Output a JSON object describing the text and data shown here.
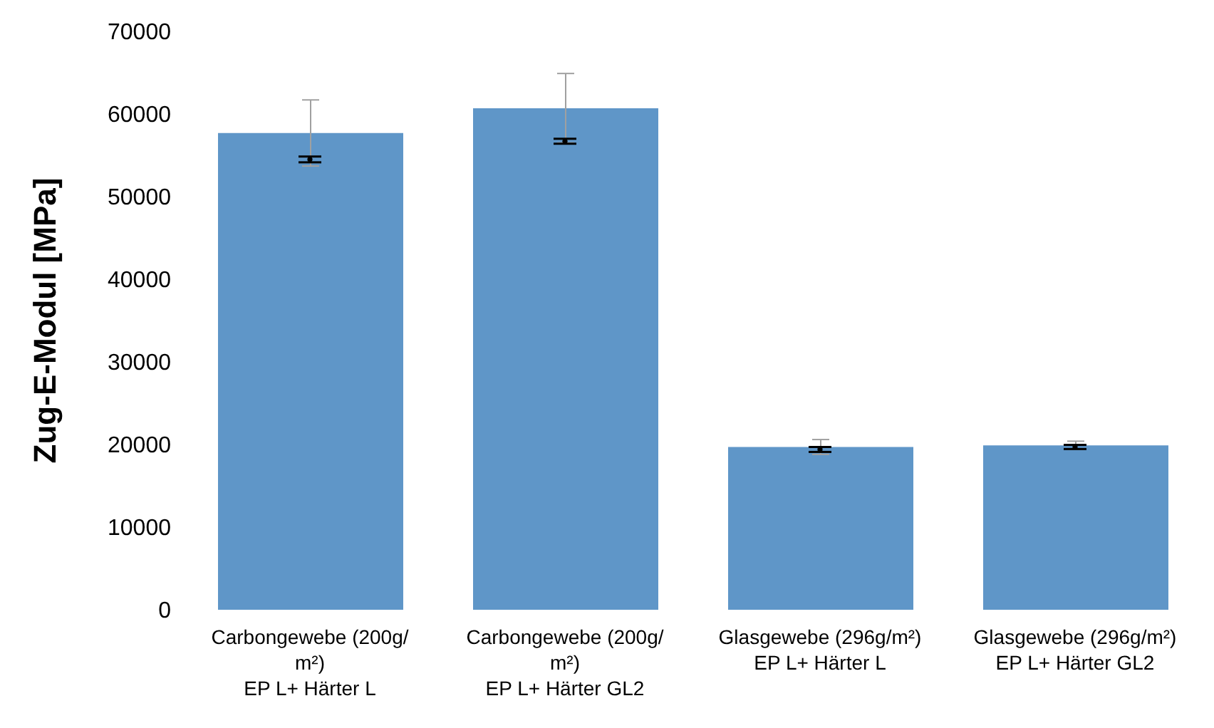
{
  "chart_data": {
    "type": "bar",
    "ylabel": "Zug-E-Modul [MPa]",
    "categories": [
      "Carbongewebe (200g/m²)\nEP L+ Härter L",
      "Carbongewebe (200g/m²)\nEP L+ Härter GL2",
      "Glasgewebe (296g/m²)\nEP L+ Härter L",
      "Glasgewebe (296g/m²)\nEP L+ Härter GL2"
    ],
    "series": [
      {
        "color": "#5f96c8",
        "values": [
          57700,
          60700,
          19700,
          19900
        ],
        "errors": [
          4000,
          4200,
          900,
          500
        ]
      },
      {
        "type": "scatter",
        "color": "#000000",
        "marker": "circle",
        "values": [
          54500,
          56700,
          19400,
          19700
        ],
        "errors": [
          350,
          300,
          300,
          250
        ]
      }
    ],
    "ylim": [
      0,
      70000
    ],
    "yticks": [
      0,
      10000,
      20000,
      30000,
      40000,
      50000,
      60000,
      70000
    ],
    "grid": false,
    "legend": false
  }
}
